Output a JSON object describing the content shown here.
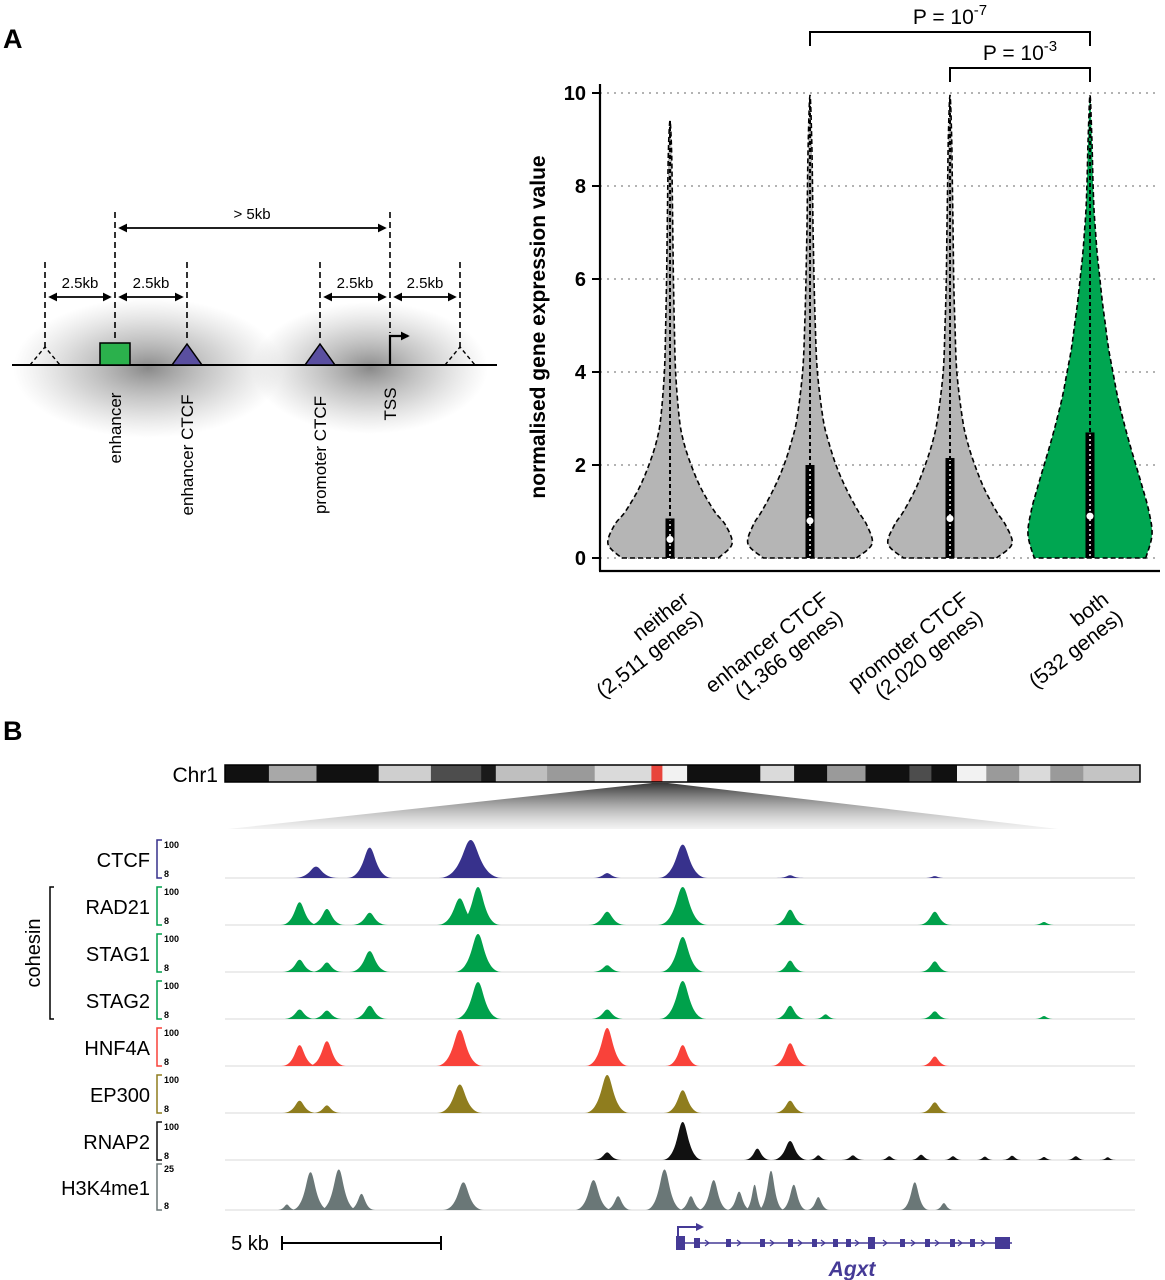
{
  "panel_labels": {
    "a": "A",
    "b": "B"
  },
  "schematic": {
    "distance_labels": [
      "2.5kb",
      "2.5kb",
      "> 5kb",
      "2.5kb",
      "2.5kb"
    ],
    "element_labels": [
      "enhancer",
      "enhancer CTCF",
      "promoter CTCF",
      "TSS"
    ],
    "colors": {
      "enhancer": "#2bb14c",
      "ctcf": "#5a4fa0"
    }
  },
  "chart_data": [
    {
      "type": "violin",
      "title": "",
      "ylabel": "normalised gene expression value",
      "ylim": [
        0,
        10
      ],
      "yticks": [
        0,
        2,
        4,
        6,
        8,
        10
      ],
      "grid": "dotted-horizontal",
      "series": [
        {
          "category": "neither",
          "genes_label": "(2,511 genes)",
          "n_genes": 2511,
          "fill": "#b5b5b5",
          "median": 0.4,
          "box_top": 0.85,
          "whisker_top": 9.4,
          "width_profile": [
            [
              0,
              0.78
            ],
            [
              0.3,
              1.0
            ],
            [
              0.7,
              0.9
            ],
            [
              1,
              0.72
            ],
            [
              1.5,
              0.5
            ],
            [
              2,
              0.34
            ],
            [
              2.5,
              0.22
            ],
            [
              3,
              0.15
            ],
            [
              4,
              0.09
            ],
            [
              5,
              0.07
            ],
            [
              6,
              0.055
            ],
            [
              7,
              0.045
            ],
            [
              8,
              0.035
            ],
            [
              8.8,
              0.025
            ],
            [
              9.4,
              0
            ]
          ]
        },
        {
          "category": "enhancer CTCF",
          "genes_label": "(1,366 genes)",
          "n_genes": 1366,
          "fill": "#b5b5b5",
          "median": 0.8,
          "box_top": 2.0,
          "whisker_top": 9.95,
          "width_profile": [
            [
              0,
              0.75
            ],
            [
              0.3,
              1.0
            ],
            [
              0.7,
              0.92
            ],
            [
              1,
              0.78
            ],
            [
              1.5,
              0.58
            ],
            [
              2,
              0.42
            ],
            [
              2.5,
              0.3
            ],
            [
              3,
              0.21
            ],
            [
              4,
              0.12
            ],
            [
              5,
              0.085
            ],
            [
              6,
              0.065
            ],
            [
              7,
              0.05
            ],
            [
              8,
              0.04
            ],
            [
              9,
              0.028
            ],
            [
              9.95,
              0
            ]
          ]
        },
        {
          "category": "promoter CTCF",
          "genes_label": "(2,020 genes)",
          "n_genes": 2020,
          "fill": "#b5b5b5",
          "median": 0.85,
          "box_top": 2.15,
          "whisker_top": 9.95,
          "width_profile": [
            [
              0,
              0.75
            ],
            [
              0.3,
              1.0
            ],
            [
              0.7,
              0.9
            ],
            [
              1,
              0.75
            ],
            [
              1.5,
              0.55
            ],
            [
              2,
              0.4
            ],
            [
              2.5,
              0.28
            ],
            [
              3,
              0.2
            ],
            [
              4,
              0.11
            ],
            [
              5,
              0.08
            ],
            [
              6,
              0.06
            ],
            [
              7,
              0.05
            ],
            [
              8,
              0.038
            ],
            [
              9,
              0.027
            ],
            [
              9.95,
              0
            ]
          ]
        },
        {
          "category": "both",
          "genes_label": "(532 genes)",
          "n_genes": 532,
          "fill": "#00a651",
          "median": 0.9,
          "box_top": 2.7,
          "whisker_top": 9.95,
          "width_profile": [
            [
              0,
              0.9
            ],
            [
              0.5,
              1.0
            ],
            [
              1,
              0.95
            ],
            [
              1.5,
              0.85
            ],
            [
              2,
              0.74
            ],
            [
              2.5,
              0.63
            ],
            [
              3,
              0.53
            ],
            [
              3.5,
              0.44
            ],
            [
              4,
              0.37
            ],
            [
              4.5,
              0.3
            ],
            [
              5,
              0.25
            ],
            [
              5.5,
              0.2
            ],
            [
              6,
              0.16
            ],
            [
              6.5,
              0.12
            ],
            [
              7,
              0.09
            ],
            [
              7.5,
              0.065
            ],
            [
              8,
              0.05
            ],
            [
              9,
              0.03
            ],
            [
              9.95,
              0
            ]
          ]
        }
      ],
      "significance": [
        {
          "text": "P = 10",
          "exp": "-7",
          "from": 1,
          "to": 3
        },
        {
          "text": "P = 10",
          "exp": "-3",
          "from": 2,
          "to": 3
        }
      ]
    },
    {
      "type": "genome_tracks",
      "chromosome_label": "Chr1",
      "ideogram": {
        "marker_color": "#e8453c",
        "segments": [
          [
            0.0,
            0.048,
            "#111111"
          ],
          [
            0.048,
            0.1,
            "#a8a8a8"
          ],
          [
            0.1,
            0.168,
            "#111111"
          ],
          [
            0.168,
            0.225,
            "#cfcfcf"
          ],
          [
            0.225,
            0.28,
            "#4d4d4d"
          ],
          [
            0.28,
            0.296,
            "#1a1a1a"
          ],
          [
            0.296,
            0.352,
            "#bfbfbf"
          ],
          [
            0.352,
            0.404,
            "#9a9a9a"
          ],
          [
            0.404,
            0.466,
            "#dadada"
          ],
          [
            0.466,
            0.478,
            "#e8453c"
          ],
          [
            0.478,
            0.505,
            "#f2f2f2"
          ],
          [
            0.505,
            0.585,
            "#111111"
          ],
          [
            0.585,
            0.622,
            "#dadada"
          ],
          [
            0.622,
            0.658,
            "#111111"
          ],
          [
            0.658,
            0.7,
            "#9a9a9a"
          ],
          [
            0.7,
            0.748,
            "#111111"
          ],
          [
            0.748,
            0.772,
            "#4d4d4d"
          ],
          [
            0.772,
            0.8,
            "#111111"
          ],
          [
            0.8,
            0.832,
            "#f2f2f2"
          ],
          [
            0.832,
            0.868,
            "#9a9a9a"
          ],
          [
            0.868,
            0.902,
            "#dadada"
          ],
          [
            0.902,
            0.938,
            "#9a9a9a"
          ],
          [
            0.938,
            1.0,
            "#c4c4c4"
          ]
        ]
      },
      "group_label": "cohesin",
      "grouped_tracks": [
        "RAD21",
        "STAG1",
        "STAG2"
      ],
      "tracks": [
        {
          "name": "CTCF",
          "color": "#37318c",
          "scale_top": "100",
          "scale_bottom": "8",
          "peaks": [
            [
              0.1,
              0.05,
              0.3
            ],
            [
              0.159,
              0.05,
              0.8
            ],
            [
              0.27,
              0.07,
              1.0
            ],
            [
              0.42,
              0.035,
              0.13
            ],
            [
              0.503,
              0.055,
              0.88
            ],
            [
              0.621,
              0.03,
              0.07
            ],
            [
              0.78,
              0.025,
              0.05
            ]
          ]
        },
        {
          "name": "RAD21",
          "color": "#00a14b",
          "scale_top": "100",
          "scale_bottom": "8",
          "peaks": [
            [
              0.082,
              0.042,
              0.6
            ],
            [
              0.112,
              0.04,
              0.42
            ],
            [
              0.159,
              0.04,
              0.32
            ],
            [
              0.258,
              0.05,
              0.7
            ],
            [
              0.278,
              0.05,
              1.0
            ],
            [
              0.42,
              0.042,
              0.35
            ],
            [
              0.503,
              0.055,
              1.0
            ],
            [
              0.621,
              0.038,
              0.4
            ],
            [
              0.78,
              0.038,
              0.35
            ],
            [
              0.9,
              0.025,
              0.08
            ]
          ]
        },
        {
          "name": "STAG1",
          "color": "#00a14b",
          "scale_top": "100",
          "scale_bottom": "8",
          "peaks": [
            [
              0.082,
              0.038,
              0.32
            ],
            [
              0.112,
              0.036,
              0.25
            ],
            [
              0.159,
              0.045,
              0.55
            ],
            [
              0.278,
              0.052,
              1.0
            ],
            [
              0.42,
              0.035,
              0.18
            ],
            [
              0.503,
              0.05,
              0.92
            ],
            [
              0.621,
              0.034,
              0.3
            ],
            [
              0.78,
              0.034,
              0.28
            ]
          ]
        },
        {
          "name": "STAG2",
          "color": "#00a14b",
          "scale_top": "100",
          "scale_bottom": "8",
          "peaks": [
            [
              0.082,
              0.036,
              0.25
            ],
            [
              0.112,
              0.036,
              0.22
            ],
            [
              0.159,
              0.04,
              0.35
            ],
            [
              0.278,
              0.052,
              0.97
            ],
            [
              0.42,
              0.038,
              0.25
            ],
            [
              0.503,
              0.052,
              1.0
            ],
            [
              0.621,
              0.036,
              0.35
            ],
            [
              0.66,
              0.025,
              0.12
            ],
            [
              0.78,
              0.032,
              0.2
            ],
            [
              0.9,
              0.022,
              0.08
            ]
          ]
        },
        {
          "name": "HNF4A",
          "color": "#f9423a",
          "scale_top": "100",
          "scale_bottom": "8",
          "peaks": [
            [
              0.082,
              0.04,
              0.55
            ],
            [
              0.112,
              0.042,
              0.65
            ],
            [
              0.258,
              0.052,
              0.95
            ],
            [
              0.42,
              0.048,
              1.0
            ],
            [
              0.503,
              0.038,
              0.55
            ],
            [
              0.621,
              0.042,
              0.6
            ],
            [
              0.78,
              0.032,
              0.25
            ]
          ]
        },
        {
          "name": "EP300",
          "color": "#8f7d1e",
          "scale_top": "100",
          "scale_bottom": "8",
          "peaks": [
            [
              0.082,
              0.038,
              0.32
            ],
            [
              0.112,
              0.032,
              0.2
            ],
            [
              0.258,
              0.05,
              0.75
            ],
            [
              0.42,
              0.05,
              1.0
            ],
            [
              0.503,
              0.042,
              0.6
            ],
            [
              0.621,
              0.036,
              0.32
            ],
            [
              0.78,
              0.034,
              0.28
            ]
          ]
        },
        {
          "name": "RNAP2",
          "color": "#111111",
          "scale_top": "100",
          "scale_bottom": "8",
          "peaks": [
            [
              0.42,
              0.032,
              0.2
            ],
            [
              0.503,
              0.045,
              1.0
            ],
            [
              0.585,
              0.03,
              0.3
            ],
            [
              0.621,
              0.04,
              0.5
            ],
            [
              0.652,
              0.022,
              0.12
            ],
            [
              0.69,
              0.025,
              0.12
            ],
            [
              0.73,
              0.022,
              0.1
            ],
            [
              0.765,
              0.025,
              0.14
            ],
            [
              0.8,
              0.022,
              0.1
            ],
            [
              0.835,
              0.02,
              0.09
            ],
            [
              0.865,
              0.022,
              0.11
            ],
            [
              0.9,
              0.02,
              0.08
            ],
            [
              0.935,
              0.022,
              0.1
            ],
            [
              0.97,
              0.018,
              0.07
            ]
          ]
        },
        {
          "name": "H3K4me1",
          "color": "#6a7777",
          "scale_top": "25",
          "scale_bottom": "8",
          "peaks": [
            [
              0.068,
              0.022,
              0.12
            ],
            [
              0.094,
              0.042,
              0.82
            ],
            [
              0.125,
              0.042,
              0.88
            ],
            [
              0.15,
              0.03,
              0.35
            ],
            [
              0.262,
              0.045,
              0.6
            ],
            [
              0.405,
              0.042,
              0.65
            ],
            [
              0.432,
              0.03,
              0.3
            ],
            [
              0.483,
              0.042,
              0.88
            ],
            [
              0.512,
              0.028,
              0.3
            ],
            [
              0.537,
              0.035,
              0.65
            ],
            [
              0.565,
              0.028,
              0.4
            ],
            [
              0.582,
              0.022,
              0.55
            ],
            [
              0.6,
              0.03,
              0.85
            ],
            [
              0.625,
              0.03,
              0.55
            ],
            [
              0.652,
              0.026,
              0.28
            ],
            [
              0.758,
              0.032,
              0.6
            ],
            [
              0.79,
              0.022,
              0.15
            ]
          ]
        }
      ],
      "scale_bar": {
        "label": "5 kb"
      },
      "gene": {
        "name": "Agxt",
        "color": "#453a96",
        "strand": "+",
        "exons": [
          [
            0,
            9,
            14
          ],
          [
            18,
            6,
            10
          ],
          [
            50,
            5,
            8
          ],
          [
            84,
            5,
            8
          ],
          [
            112,
            5,
            8
          ],
          [
            136,
            5,
            8
          ],
          [
            157,
            5,
            8
          ],
          [
            170,
            5,
            8
          ],
          [
            192,
            7,
            12
          ],
          [
            224,
            5,
            8
          ],
          [
            249,
            5,
            8
          ],
          [
            274,
            5,
            8
          ],
          [
            294,
            5,
            8
          ],
          [
            319,
            15,
            12
          ]
        ],
        "intron_arrows": [
          32,
          64,
          97,
          125,
          148,
          182,
          210,
          238,
          262,
          285,
          308
        ]
      }
    }
  ]
}
